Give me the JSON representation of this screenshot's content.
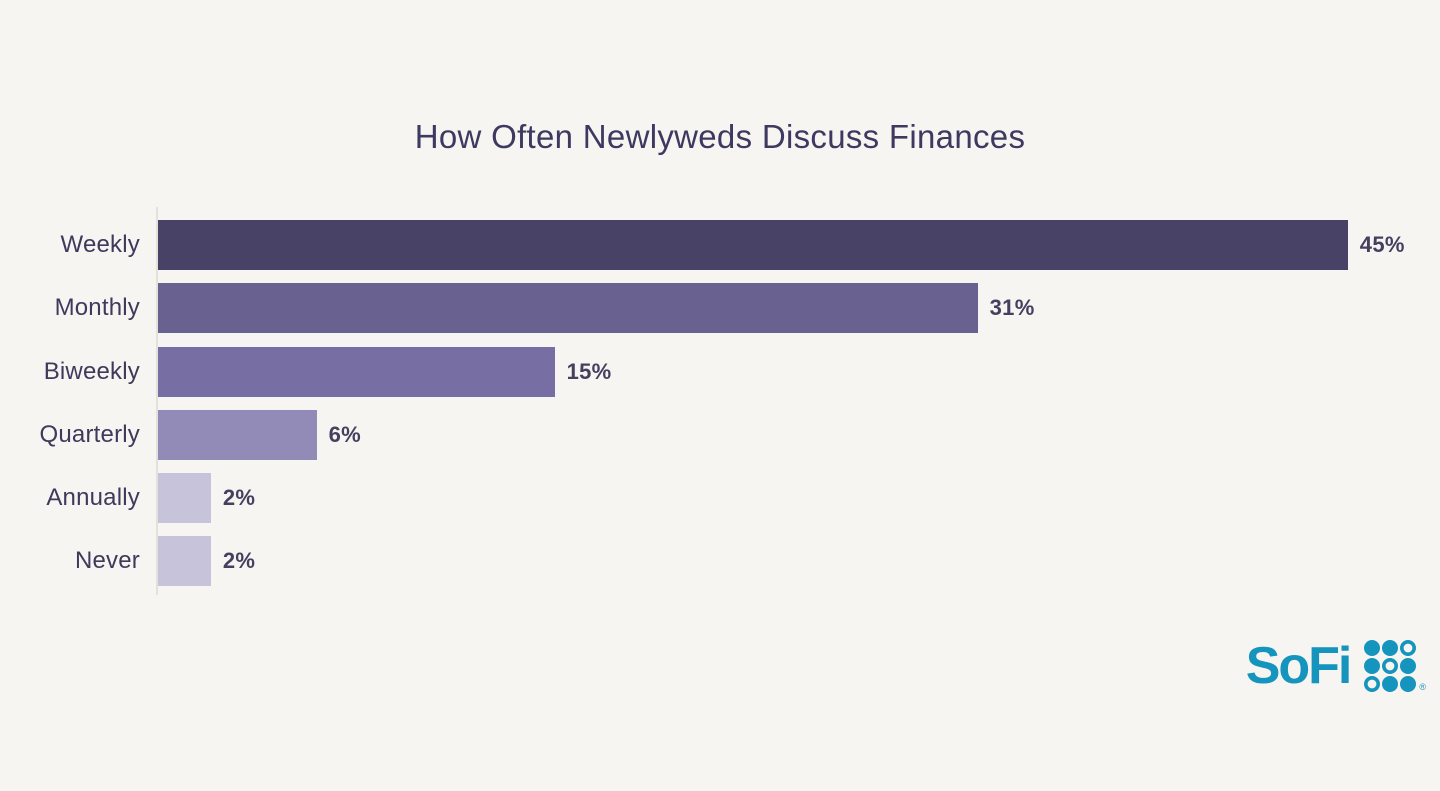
{
  "page": {
    "background_color": "#f7f5f1",
    "axis_line_color": "#e3e1da"
  },
  "chart_data": {
    "type": "bar",
    "orientation": "horizontal",
    "title": "How Often Newlyweds Discuss Finances",
    "title_color": "#3d3960",
    "categories": [
      "Weekly",
      "Monthly",
      "Biweekly",
      "Quarterly",
      "Annually",
      "Never"
    ],
    "values": [
      45,
      31,
      15,
      6,
      2,
      2
    ],
    "value_labels": [
      "45%",
      "31%",
      "15%",
      "6%",
      "2%",
      "2%"
    ],
    "bar_colors": [
      "#484266",
      "#696290",
      "#776fa3",
      "#928bb8",
      "#c7c3da",
      "#c7c3da"
    ],
    "category_label_color": "#3e3a5c",
    "value_label_color": "#454060",
    "xlabel": "",
    "ylabel": "",
    "xlim": [
      0,
      45
    ],
    "grid": false,
    "legend": false
  },
  "logo": {
    "text": "SoFi",
    "trademark": "®",
    "color": "#1594bd",
    "dot_pattern": [
      "filled",
      "filled",
      "ring",
      "filled",
      "ring",
      "filled",
      "ring",
      "filled",
      "filled"
    ]
  }
}
